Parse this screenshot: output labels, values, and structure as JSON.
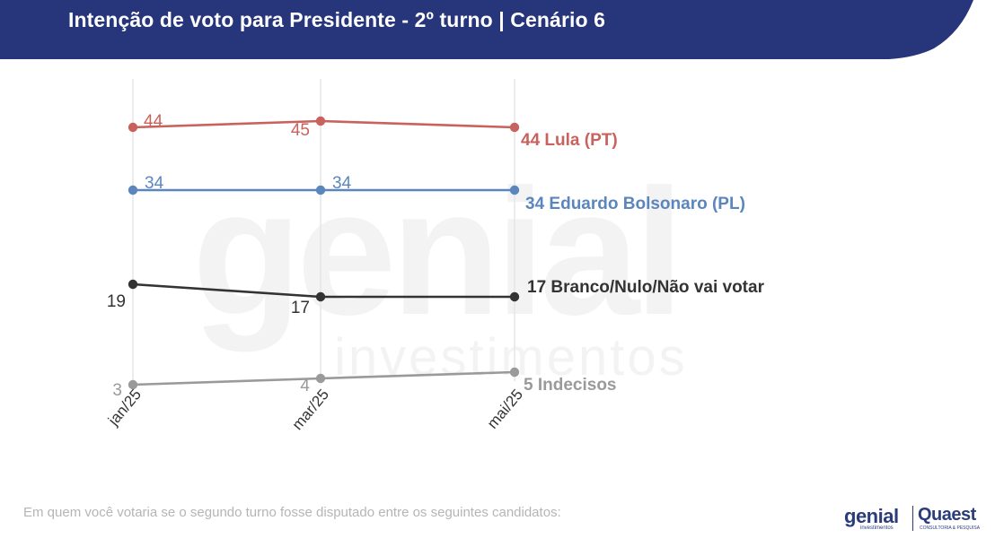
{
  "header": {
    "title": "Intenção de voto para Presidente - 2º turno | Cenário 6",
    "background": "#27357a"
  },
  "chart_data": {
    "type": "line",
    "categories": [
      "jan/25",
      "mar/25",
      "mai/25"
    ],
    "ylim": [
      0,
      50
    ],
    "grid": "vertical",
    "legend": "end-labels",
    "series": [
      {
        "name": "Lula (PT)",
        "values": [
          44,
          45,
          44
        ],
        "color": "#c9625d",
        "point_labels": [
          "44",
          "45",
          ""
        ],
        "end_label": "44 Lula (PT)"
      },
      {
        "name": "Eduardo Bolsonaro (PL)",
        "values": [
          34,
          34,
          34
        ],
        "color": "#5b86bd",
        "point_labels": [
          "34",
          "34",
          ""
        ],
        "end_label": "34 Eduardo Bolsonaro (PL)"
      },
      {
        "name": "Branco/Nulo/Não vai votar",
        "values": [
          19,
          17,
          17
        ],
        "color": "#333333",
        "point_labels": [
          "19",
          "17",
          ""
        ],
        "end_label": "17 Branco/Nulo/Não vai votar"
      },
      {
        "name": "Indecisos",
        "values": [
          3,
          4,
          5
        ],
        "color": "#9a9a9a",
        "point_labels": [
          "3",
          "4",
          ""
        ],
        "end_label": "5 Indecisos"
      }
    ]
  },
  "watermark": {
    "brand": "genial",
    "sub": "investimentos"
  },
  "footnote": "Em quem você votaria se o segundo turno fosse disputado entre os seguintes candidatos:",
  "logos": {
    "genial": "genial",
    "genial_sub": "investimentos",
    "quaest": "Quaest",
    "quaest_sub": "CONSULTORIA & PESQUISA"
  }
}
